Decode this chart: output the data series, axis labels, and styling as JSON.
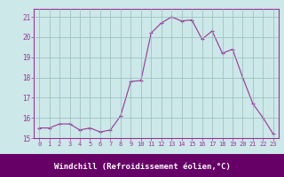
{
  "x": [
    0,
    1,
    2,
    3,
    4,
    5,
    6,
    7,
    8,
    9,
    10,
    11,
    12,
    13,
    14,
    15,
    16,
    17,
    18,
    19,
    20,
    21,
    22,
    23
  ],
  "y": [
    15.5,
    15.5,
    15.7,
    15.7,
    15.4,
    15.5,
    15.3,
    15.4,
    16.1,
    17.8,
    17.85,
    20.2,
    20.7,
    21.0,
    20.8,
    20.85,
    19.9,
    20.3,
    19.2,
    19.4,
    18.0,
    16.7,
    16.0,
    15.2
  ],
  "line_color": "#993399",
  "marker": "+",
  "bg_color": "#cce8e8",
  "plot_bg_color": "#cce8e8",
  "xlabel_bg_color": "#660066",
  "grid_color": "#99bbbb",
  "xlabel": "Windchill (Refroidissement éolien,°C)",
  "xlabel_color": "#ffffff",
  "tick_color": "#993399",
  "ytick_color": "#993399",
  "spine_color": "#993399",
  "ylim": [
    15,
    21.4
  ],
  "yticks": [
    15,
    16,
    17,
    18,
    19,
    20,
    21
  ],
  "xticks": [
    0,
    1,
    2,
    3,
    4,
    5,
    6,
    7,
    8,
    9,
    10,
    11,
    12,
    13,
    14,
    15,
    16,
    17,
    18,
    19,
    20,
    21,
    22,
    23
  ],
  "figsize": [
    3.2,
    2.0
  ],
  "dpi": 100
}
